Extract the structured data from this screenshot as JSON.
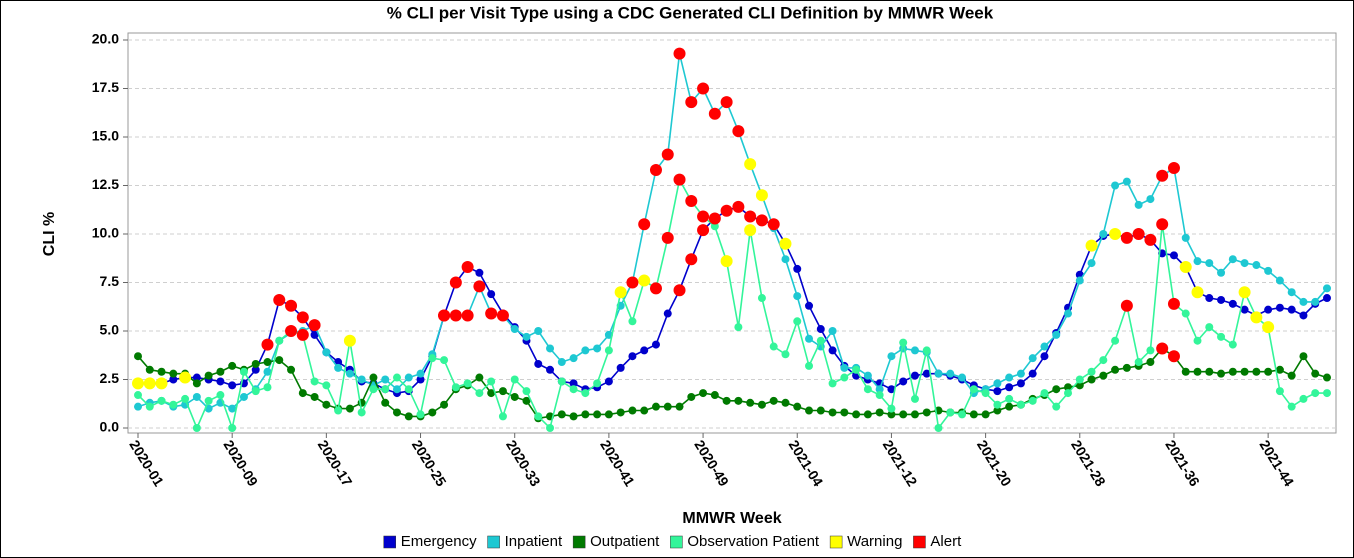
{
  "chart_data": {
    "type": "line",
    "title": "% CLI per Visit Type using a CDC Generated CLI Definition by MMWR Week",
    "x_label": "MMWR Week",
    "y_label": "CLI %",
    "categories": [
      "2020-01",
      null,
      null,
      null,
      null,
      null,
      null,
      null,
      "2020-09",
      null,
      null,
      null,
      null,
      null,
      null,
      null,
      "2020-17",
      null,
      null,
      null,
      null,
      null,
      null,
      null,
      "2020-25",
      null,
      null,
      null,
      null,
      null,
      null,
      null,
      "2020-33",
      null,
      null,
      null,
      null,
      null,
      null,
      null,
      "2020-41",
      null,
      null,
      null,
      null,
      null,
      null,
      null,
      "2020-49",
      null,
      null,
      null,
      null,
      null,
      null,
      null,
      "2021-04",
      null,
      null,
      null,
      null,
      null,
      null,
      null,
      "2021-12",
      null,
      null,
      null,
      null,
      null,
      null,
      null,
      "2021-20",
      null,
      null,
      null,
      null,
      null,
      null,
      null,
      "2021-28",
      null,
      null,
      null,
      null,
      null,
      null,
      null,
      "2021-36",
      null,
      null,
      null,
      null,
      null,
      null,
      null,
      "2021-44",
      null,
      null,
      null,
      null,
      null
    ],
    "ylim": [
      0,
      20
    ],
    "yticks": [
      {
        "value": 0,
        "label": "0.0"
      },
      {
        "value": 2.5,
        "label": "2.5"
      },
      {
        "value": 5,
        "label": "5.0"
      },
      {
        "value": 7.5,
        "label": "7.5"
      },
      {
        "value": 10,
        "label": "10.0"
      },
      {
        "value": 12.5,
        "label": "12.5"
      },
      {
        "value": 15,
        "label": "15.0"
      },
      {
        "value": 17.5,
        "label": "17.5"
      },
      {
        "value": 20,
        "label": "20.0"
      }
    ],
    "grid": true,
    "series": [
      {
        "name": "Emergency",
        "color": "#0000cc",
        "values": [
          2.3,
          2.3,
          2.3,
          2.5,
          2.6,
          2.6,
          2.5,
          2.4,
          2.2,
          2.3,
          3.0,
          4.3,
          6.6,
          6.3,
          5.7,
          4.8,
          3.9,
          3.4,
          3.0,
          2.4,
          2.3,
          2.0,
          1.8,
          1.9,
          2.5,
          3.7,
          5.8,
          7.5,
          8.3,
          8.0,
          6.9,
          5.9,
          5.2,
          4.5,
          3.3,
          3.0,
          2.4,
          2.3,
          2.0,
          2.1,
          2.4,
          3.1,
          3.7,
          4.0,
          4.3,
          5.9,
          7.1,
          8.7,
          10.2,
          10.8,
          11.2,
          11.4,
          10.9,
          10.7,
          10.5,
          9.5,
          8.2,
          6.3,
          5.1,
          4.0,
          3.2,
          2.7,
          2.5,
          2.3,
          2.0,
          2.4,
          2.7,
          2.8,
          2.8,
          2.7,
          2.5,
          2.2,
          2.0,
          1.9,
          2.1,
          2.3,
          2.8,
          3.7,
          4.9,
          6.2,
          7.9,
          9.4,
          9.9,
          10.0,
          9.8,
          10.0,
          9.7,
          9.0,
          8.9,
          8.3,
          7.0,
          6.7,
          6.6,
          6.4,
          6.1,
          5.8,
          6.1,
          6.2,
          6.1,
          5.8,
          6.4,
          6.7
        ]
      },
      {
        "name": "Inpatient",
        "color": "#1ec8d2",
        "values": [
          1.1,
          1.3,
          1.4,
          1.1,
          1.2,
          1.6,
          1.0,
          1.3,
          1.0,
          1.6,
          2.0,
          2.9,
          4.5,
          4.9,
          5.0,
          5.3,
          3.9,
          3.1,
          2.8,
          2.5,
          2.2,
          2.5,
          2.0,
          2.6,
          2.8,
          3.8,
          5.8,
          5.8,
          5.8,
          7.3,
          5.9,
          5.8,
          5.1,
          4.7,
          5.0,
          4.1,
          3.4,
          3.6,
          4.0,
          4.1,
          4.8,
          6.3,
          7.5,
          10.5,
          13.3,
          14.1,
          19.3,
          16.8,
          17.5,
          16.2,
          16.8,
          15.3,
          13.6,
          12.0,
          10.3,
          8.7,
          6.8,
          4.6,
          4.2,
          5.0,
          3.1,
          3.1,
          2.7,
          2.0,
          3.7,
          4.1,
          4.0,
          3.9,
          2.8,
          2.8,
          2.6,
          1.8,
          2.0,
          2.3,
          2.6,
          2.8,
          3.6,
          4.2,
          4.8,
          5.9,
          7.6,
          8.5,
          10.0,
          12.5,
          12.7,
          11.5,
          11.8,
          13.0,
          13.4,
          9.8,
          8.6,
          8.5,
          8.0,
          8.7,
          8.5,
          8.4,
          8.1,
          7.6,
          7.0,
          6.5,
          6.5,
          7.2
        ]
      },
      {
        "name": "Outpatient",
        "color": "#007a00",
        "values": [
          3.7,
          3.0,
          2.9,
          2.8,
          2.8,
          2.3,
          2.7,
          2.9,
          3.2,
          3.0,
          3.3,
          3.4,
          3.5,
          3.0,
          1.8,
          1.6,
          1.2,
          1.0,
          1.0,
          1.3,
          2.6,
          1.3,
          0.8,
          0.6,
          0.6,
          0.8,
          1.2,
          2.0,
          2.2,
          2.6,
          1.8,
          1.9,
          1.6,
          1.4,
          0.5,
          0.6,
          0.7,
          0.6,
          0.7,
          0.7,
          0.7,
          0.8,
          0.9,
          0.9,
          1.1,
          1.1,
          1.1,
          1.6,
          1.8,
          1.7,
          1.4,
          1.4,
          1.3,
          1.2,
          1.4,
          1.3,
          1.1,
          0.9,
          0.9,
          0.8,
          0.8,
          0.7,
          0.7,
          0.8,
          0.7,
          0.7,
          0.7,
          0.8,
          0.9,
          0.8,
          0.8,
          0.7,
          0.7,
          0.9,
          1.1,
          1.2,
          1.5,
          1.7,
          2.0,
          2.1,
          2.2,
          2.5,
          2.7,
          3.0,
          3.1,
          3.2,
          3.4,
          4.1,
          3.7,
          2.9,
          2.9,
          2.9,
          2.8,
          2.9,
          2.9,
          2.9,
          2.9,
          3.0,
          2.7,
          3.7,
          2.8,
          2.6
        ]
      },
      {
        "name": "Observation Patient",
        "color": "#33f59a",
        "values": [
          1.7,
          1.1,
          1.4,
          1.2,
          1.5,
          0.0,
          1.4,
          1.7,
          0.0,
          2.9,
          1.9,
          2.1,
          4.5,
          5.0,
          4.8,
          2.4,
          2.2,
          0.9,
          4.5,
          0.8,
          2.0,
          2.0,
          2.6,
          2.0,
          0.7,
          3.6,
          3.5,
          2.1,
          2.3,
          1.8,
          2.4,
          0.6,
          2.5,
          1.9,
          0.6,
          0.0,
          2.4,
          2.0,
          1.8,
          2.3,
          4.0,
          7.0,
          5.5,
          7.6,
          7.2,
          9.8,
          12.8,
          11.7,
          10.9,
          10.4,
          8.6,
          5.2,
          10.2,
          6.7,
          4.2,
          3.8,
          5.5,
          3.2,
          4.5,
          2.3,
          2.6,
          3.0,
          2.0,
          1.7,
          1.0,
          4.4,
          1.5,
          4.0,
          0.0,
          0.8,
          0.7,
          2.0,
          1.8,
          1.2,
          1.5,
          1.2,
          1.4,
          1.8,
          1.1,
          1.8,
          2.5,
          2.9,
          3.5,
          4.5,
          6.3,
          3.4,
          4.0,
          10.5,
          6.4,
          5.9,
          4.5,
          5.2,
          4.7,
          4.3,
          7.0,
          5.7,
          5.2,
          1.9,
          1.1,
          1.5,
          1.8,
          1.8
        ]
      }
    ],
    "flags": [
      {
        "name": "Warning",
        "color": "#ffff00",
        "points": [
          [
            0,
            0
          ],
          [
            0,
            1
          ],
          [
            0,
            2
          ],
          [
            0,
            4
          ],
          [
            3,
            18
          ],
          [
            3,
            41
          ],
          [
            3,
            43
          ],
          [
            3,
            50
          ],
          [
            3,
            52
          ],
          [
            1,
            52
          ],
          [
            1,
            53
          ],
          [
            0,
            55
          ],
          [
            0,
            81
          ],
          [
            0,
            83
          ],
          [
            0,
            89
          ],
          [
            0,
            90
          ],
          [
            3,
            94
          ],
          [
            3,
            95
          ],
          [
            3,
            96
          ]
        ]
      },
      {
        "name": "Alert",
        "color": "#ff0000",
        "points": [
          [
            0,
            11
          ],
          [
            0,
            12
          ],
          [
            0,
            13
          ],
          [
            0,
            14
          ],
          [
            1,
            15
          ],
          [
            3,
            13
          ],
          [
            3,
            14
          ],
          [
            0,
            26
          ],
          [
            0,
            27
          ],
          [
            0,
            28
          ],
          [
            1,
            26
          ],
          [
            1,
            27
          ],
          [
            1,
            28
          ],
          [
            1,
            29
          ],
          [
            1,
            30
          ],
          [
            1,
            31
          ],
          [
            1,
            42
          ],
          [
            1,
            43
          ],
          [
            1,
            44
          ],
          [
            1,
            45
          ],
          [
            1,
            46
          ],
          [
            1,
            47
          ],
          [
            1,
            48
          ],
          [
            1,
            49
          ],
          [
            1,
            50
          ],
          [
            1,
            51
          ],
          [
            3,
            44
          ],
          [
            3,
            45
          ],
          [
            3,
            46
          ],
          [
            3,
            47
          ],
          [
            3,
            48
          ],
          [
            0,
            46
          ],
          [
            0,
            47
          ],
          [
            0,
            48
          ],
          [
            0,
            49
          ],
          [
            0,
            50
          ],
          [
            0,
            51
          ],
          [
            0,
            52
          ],
          [
            0,
            53
          ],
          [
            0,
            54
          ],
          [
            0,
            84
          ],
          [
            0,
            85
          ],
          [
            0,
            86
          ],
          [
            3,
            84
          ],
          [
            3,
            87
          ],
          [
            3,
            88
          ],
          [
            1,
            87
          ],
          [
            1,
            88
          ],
          [
            2,
            87
          ],
          [
            2,
            88
          ]
        ]
      }
    ]
  }
}
